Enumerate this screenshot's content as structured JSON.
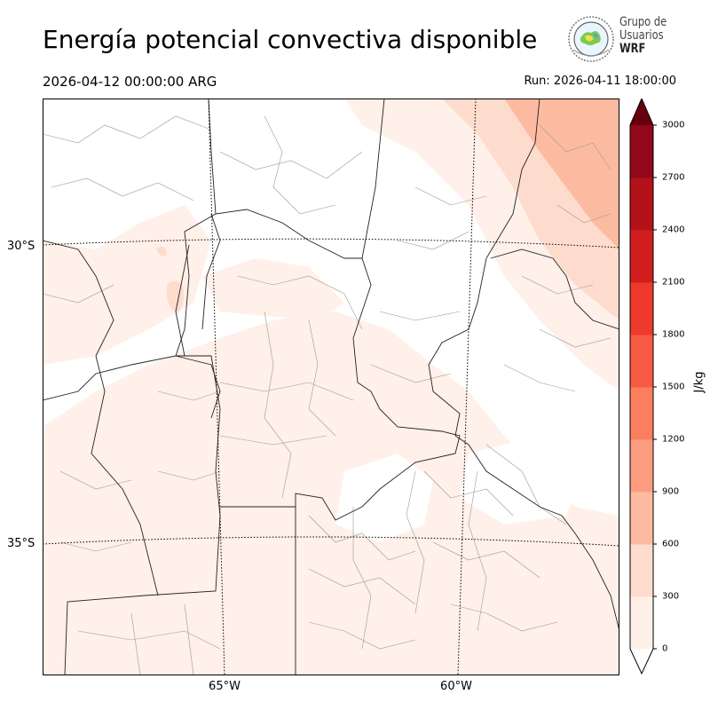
{
  "header": {
    "title": "Energía potencial convectiva disponible",
    "valid_time": "2026-04-12 00:00:00 ARG",
    "run_time": "Run: 2026-04-11 18:00:00"
  },
  "logo": {
    "line1": "Grupo de",
    "line2": "Usuarios",
    "line3": "WRF"
  },
  "map": {
    "lat_labels": [
      "30°S",
      "35°S"
    ],
    "lon_labels": [
      "65°W",
      "60°W"
    ]
  },
  "colorbar": {
    "unit": "J/kg",
    "ticks": [
      "0",
      "300",
      "600",
      "900",
      "1200",
      "1500",
      "1800",
      "2100",
      "2400",
      "2700",
      "3000"
    ],
    "colors": [
      "#fff0e9",
      "#fedccd",
      "#fcbba1",
      "#fc9d80",
      "#fb7f5f",
      "#f75a43",
      "#ee3a2c",
      "#d01e1f",
      "#b31218",
      "#91091a"
    ],
    "extend_color": "#67000d"
  }
}
